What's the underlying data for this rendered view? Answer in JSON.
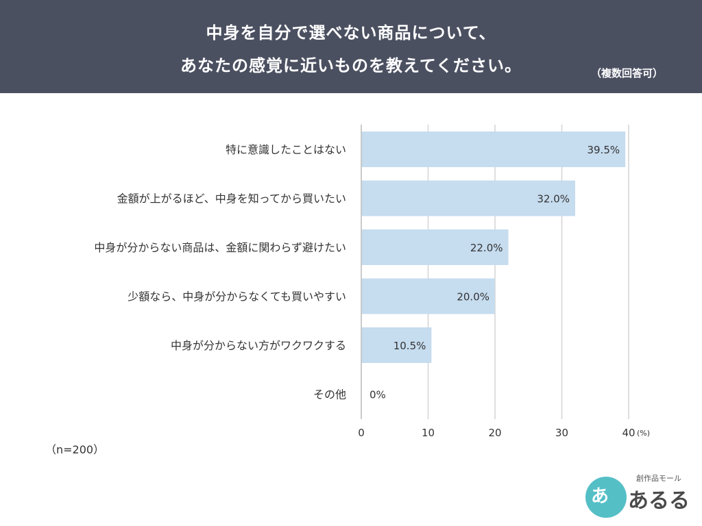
{
  "header": {
    "title_line1": "中身を自分で選べない商品について、",
    "title_line2": "あなたの感覚に近いものを教えてください。",
    "note": "（複数回答可）"
  },
  "colors": {
    "header_bg": "#4b5061",
    "bar": "#c6dcef",
    "grid": "#d4d4d4",
    "text": "#333333"
  },
  "footer": {
    "sample_size": "（n=200）"
  },
  "logo": {
    "sub_text": "創作品モール",
    "main_text": "あるる",
    "circle_glyph": "あ"
  },
  "chart_data": {
    "type": "bar",
    "orientation": "horizontal",
    "categories": [
      "特に意識したことはない",
      "金額が上がるほど、中身を知ってから買いたい",
      "中身が分からない商品は、金額に関わらず避けたい",
      "少額なら、中身が分からなくても買いやすい",
      "中身が分からない方がワクワクする",
      "その他"
    ],
    "values": [
      39.5,
      32.0,
      22.0,
      20.0,
      10.5,
      0
    ],
    "value_labels": [
      "39.5%",
      "32.0%",
      "22.0%",
      "20.0%",
      "10.5%",
      "0%"
    ],
    "x_ticks": [
      "0",
      "10",
      "20",
      "30",
      "40"
    ],
    "x_tick_values": [
      0,
      10,
      20,
      30,
      40
    ],
    "x_unit": "(%)",
    "xlim": [
      0,
      40
    ],
    "grid": true
  }
}
